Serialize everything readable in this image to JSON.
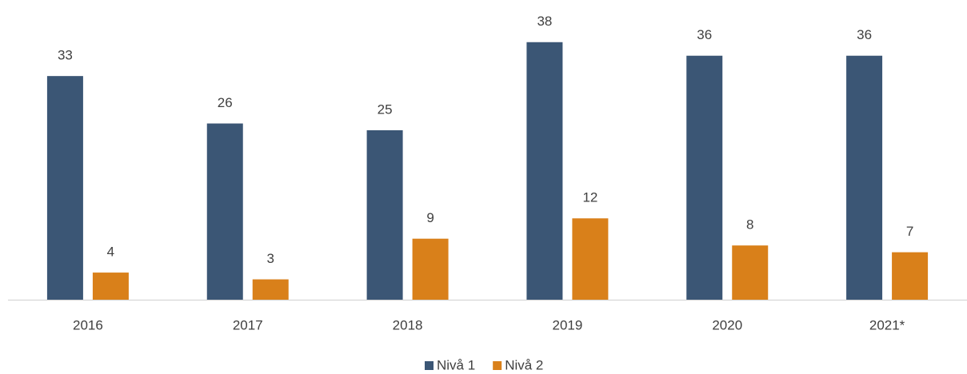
{
  "chart_data": {
    "type": "bar",
    "categories": [
      "2016",
      "2017",
      "2018",
      "2019",
      "2020",
      "2021*"
    ],
    "series": [
      {
        "name": "Nivå 1",
        "color": "#3b5675",
        "values": [
          33,
          26,
          25,
          38,
          36,
          36
        ]
      },
      {
        "name": "Nivå 2",
        "color": "#d9801a",
        "values": [
          4,
          3,
          9,
          12,
          8,
          7
        ]
      }
    ],
    "legend": "bottom"
  }
}
